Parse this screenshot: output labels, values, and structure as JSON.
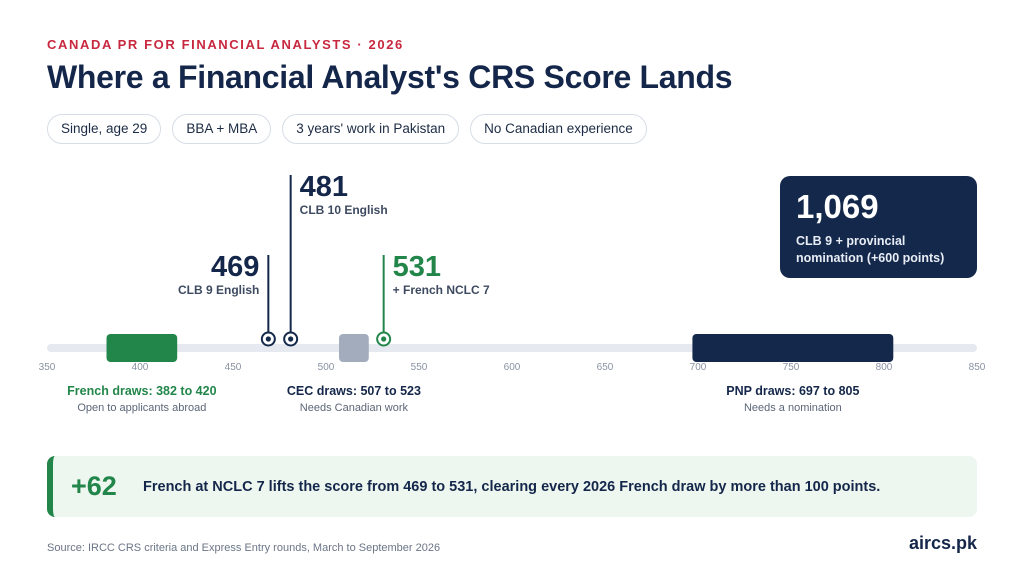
{
  "eyebrow": "CANADA PR FOR FINANCIAL ANALYSTS · 2026",
  "title": "Where a Financial Analyst's CRS Score Lands",
  "chips": [
    "Single, age 29",
    "BBA + MBA",
    "3 years' work in Pakistan",
    "No Canadian experience"
  ],
  "nomination": {
    "score": "1,069",
    "line1": "CLB 9 + provincial",
    "line2": "nomination (+600 points)"
  },
  "callout": {
    "delta": "+62",
    "message": "French at NCLC 7 lifts the score from 469 to 531, clearing every 2026 French draw by more than 100 points."
  },
  "footer": {
    "source": "Source: IRCC CRS criteria and Express Entry rounds, March to September 2026",
    "brand": "aircs.pk"
  },
  "colors": {
    "navy": "#14284b",
    "green": "#22864a",
    "gray": "#a3acbd",
    "track": "#e6eaf0",
    "accent": "#c8283f"
  },
  "chart_data": {
    "type": "range",
    "xlim": [
      350,
      850
    ],
    "ticks": [
      350,
      400,
      450,
      500,
      550,
      600,
      650,
      700,
      750,
      800,
      850
    ],
    "ranges": [
      {
        "id": "french",
        "from": 382,
        "to": 420,
        "label": "French draws: 382 to 420",
        "sublabel": "Open to applicants abroad",
        "color": "green"
      },
      {
        "id": "cec",
        "from": 507,
        "to": 523,
        "label": "CEC draws: 507 to 523",
        "sublabel": "Needs Canadian work",
        "color": "gray"
      },
      {
        "id": "pnp",
        "from": 697,
        "to": 805,
        "label": "PNP draws: 697 to 805",
        "sublabel": "Needs a nomination",
        "color": "navy"
      }
    ],
    "markers": [
      {
        "id": "clb9",
        "value": 469,
        "label": "469",
        "sublabel": "CLB 9 English",
        "color": "navy",
        "side": "left"
      },
      {
        "id": "clb10",
        "value": 481,
        "label": "481",
        "sublabel": "CLB 10 English",
        "color": "navy",
        "side": "right"
      },
      {
        "id": "french7",
        "value": 531,
        "label": "531",
        "sublabel": "+ French NCLC 7",
        "color": "green",
        "side": "right"
      }
    ]
  }
}
